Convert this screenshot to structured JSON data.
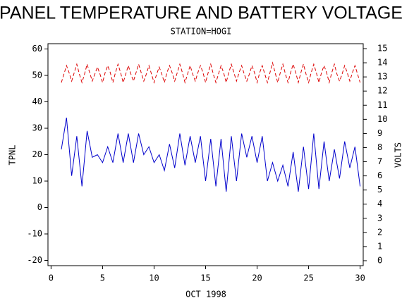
{
  "chart_data": {
    "type": "line",
    "title": "PANEL TEMPERATURE AND BATTERY VOLTAGE",
    "subtitle": "STATION=HOGI",
    "x_label": "OCT 1998",
    "y_label": "TPNL",
    "y2_label": "VOLTS",
    "xlim": [
      -0.3,
      30.3
    ],
    "xticks": [
      0,
      5,
      10,
      15,
      20,
      25,
      30
    ],
    "ylim": [
      -22,
      62
    ],
    "yticks": [
      -20,
      -10,
      0,
      10,
      20,
      30,
      40,
      50,
      60
    ],
    "y2lim": [
      -0.35,
      15.35
    ],
    "y2ticks": [
      0,
      1,
      2,
      3,
      4,
      5,
      6,
      7,
      8,
      9,
      10,
      11,
      12,
      13,
      14,
      15
    ],
    "x": [
      1,
      1.25,
      1.5,
      1.75,
      2,
      2.25,
      2.5,
      2.75,
      3,
      3.25,
      3.5,
      3.75,
      4,
      4.25,
      4.5,
      4.75,
      5,
      5.25,
      5.5,
      5.75,
      6,
      6.25,
      6.5,
      6.75,
      7,
      7.25,
      7.5,
      7.75,
      8,
      8.25,
      8.5,
      8.75,
      9,
      9.25,
      9.5,
      9.75,
      10,
      10.25,
      10.5,
      10.75,
      11,
      11.25,
      11.5,
      11.75,
      12,
      12.25,
      12.5,
      12.75,
      13,
      13.25,
      13.5,
      13.75,
      14,
      14.25,
      14.5,
      14.75,
      15,
      15.25,
      15.5,
      15.75,
      16,
      16.25,
      16.5,
      16.75,
      17,
      17.25,
      17.5,
      17.75,
      18,
      18.25,
      18.5,
      18.75,
      19,
      19.25,
      19.5,
      19.75,
      20,
      20.25,
      20.5,
      20.75,
      21,
      21.25,
      21.5,
      21.75,
      22,
      22.25,
      22.5,
      22.75,
      23,
      23.25,
      23.5,
      23.75,
      24,
      24.25,
      24.5,
      24.75,
      25,
      25.25,
      25.5,
      25.75,
      26,
      26.25,
      26.5,
      26.75,
      27,
      27.25,
      27.5,
      27.75,
      28,
      28.25,
      28.5,
      28.75,
      29,
      29.25,
      29.5,
      29.75,
      30
    ],
    "series": [
      {
        "name": "TPNL",
        "color": "#0000cc",
        "dashed": false,
        "values": [
          22,
          28,
          34,
          23,
          12,
          19.5,
          27,
          17.5,
          8,
          18.5,
          29,
          24,
          19,
          19.5,
          20,
          18.5,
          17,
          20,
          23,
          20,
          17,
          22.5,
          28,
          22.5,
          17,
          22.5,
          28,
          22.5,
          17,
          22.5,
          28,
          24,
          20,
          21.5,
          23,
          20,
          17,
          18.5,
          20,
          17,
          14,
          19,
          24,
          19.5,
          15,
          21.5,
          28,
          22,
          16,
          21.5,
          27,
          22,
          17,
          22,
          27,
          18.5,
          10,
          18,
          26,
          17,
          8,
          17,
          26,
          16,
          6,
          16.5,
          27,
          18.5,
          10,
          19,
          28,
          23.5,
          19,
          23,
          27,
          22,
          17,
          22,
          27,
          18.5,
          10,
          13.5,
          17,
          13.5,
          10,
          13,
          16,
          12,
          8,
          14.5,
          21,
          13.5,
          6,
          14.5,
          23,
          15,
          7,
          17.5,
          28,
          17.5,
          7,
          16,
          25,
          17.5,
          10,
          16,
          22,
          16.5,
          11,
          18,
          25,
          20,
          15,
          19,
          23,
          15.5,
          8
        ]
      },
      {
        "name": "VOLTS",
        "color": "#dd0000",
        "dashed": true,
        "axis": "y2",
        "values": [
          12.6,
          13.2,
          13.8,
          13.3,
          12.7,
          13.3,
          13.9,
          13.2,
          12.6,
          13.2,
          13.9,
          13.3,
          12.7,
          13.2,
          13.7,
          13.2,
          12.6,
          13.3,
          13.8,
          13.3,
          12.6,
          13.3,
          13.9,
          13.3,
          12.6,
          13.2,
          13.8,
          13.2,
          12.7,
          13.3,
          13.9,
          13.3,
          12.7,
          13.2,
          13.8,
          13.2,
          12.6,
          13.2,
          13.7,
          13.2,
          12.6,
          13.3,
          13.8,
          13.3,
          12.7,
          13.3,
          13.9,
          13.3,
          12.6,
          13.2,
          13.8,
          13.2,
          12.7,
          13.3,
          13.8,
          13.3,
          12.6,
          13.3,
          13.9,
          13.2,
          12.6,
          13.2,
          13.8,
          13.3,
          12.6,
          13.3,
          13.9,
          13.3,
          12.7,
          13.3,
          13.8,
          13.2,
          12.7,
          13.2,
          13.8,
          13.3,
          12.6,
          13.3,
          13.8,
          13.2,
          12.6,
          13.3,
          14.0,
          13.3,
          12.6,
          13.3,
          13.9,
          13.2,
          12.6,
          13.3,
          13.9,
          13.3,
          12.6,
          13.3,
          13.9,
          13.2,
          12.6,
          13.3,
          13.9,
          13.3,
          12.6,
          13.3,
          13.8,
          13.3,
          12.6,
          13.3,
          13.9,
          13.2,
          12.7,
          13.2,
          13.8,
          13.3,
          12.7,
          13.3,
          13.8,
          13.2,
          12.6
        ]
      }
    ]
  }
}
